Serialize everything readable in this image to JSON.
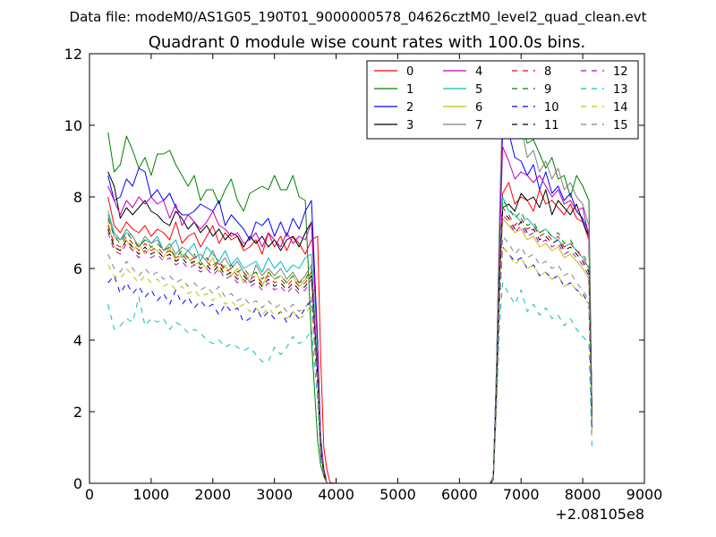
{
  "header": "Data file: modeM0/AS1G05_190T01_9000000578_04626cztM0_level2_quad_clean.evt",
  "chart_data": {
    "type": "line",
    "title": "Quadrant 0 module wise count rates with 100.0s bins.",
    "xlabel": "",
    "ylabel": "",
    "x_offset_label": "+2.08105e8",
    "xlim": [
      0,
      9000
    ],
    "ylim": [
      0,
      12
    ],
    "xticks": [
      "0",
      "1000",
      "2000",
      "3000",
      "4000",
      "5000",
      "6000",
      "7000",
      "8000",
      "9000"
    ],
    "yticks": [
      "0",
      "2",
      "4",
      "6",
      "8",
      "10",
      "12"
    ],
    "legend_position": "upper-right",
    "legend_columns": 4,
    "x": [
      300,
      400,
      500,
      600,
      700,
      800,
      900,
      1000,
      1100,
      1200,
      1300,
      1400,
      1500,
      1600,
      1700,
      1800,
      1900,
      2000,
      2100,
      2200,
      2300,
      2400,
      2500,
      2600,
      2700,
      2800,
      2900,
      3000,
      3100,
      3200,
      3300,
      3400,
      3500,
      3600,
      3700,
      3750,
      3800,
      3850,
      3900,
      4000,
      4500,
      5000,
      5500,
      6000,
      6500,
      6550,
      6600,
      6650,
      6700,
      6800,
      6900,
      7000,
      7100,
      7200,
      7300,
      7400,
      7500,
      7600,
      7700,
      7800,
      7900,
      8000,
      8100,
      8150
    ],
    "series": [
      {
        "name": "0",
        "color": "#ff0000",
        "dash": "solid",
        "values": [
          8.0,
          7.2,
          7.0,
          7.3,
          7.1,
          7.0,
          7.2,
          6.9,
          7.1,
          7.0,
          6.8,
          7.3,
          6.7,
          6.9,
          7.0,
          6.6,
          6.9,
          7.2,
          6.7,
          7.0,
          6.8,
          6.9,
          6.5,
          6.6,
          6.8,
          6.4,
          7.0,
          6.6,
          6.9,
          6.5,
          6.9,
          6.7,
          6.4,
          6.8,
          6.9,
          3.5,
          1.0,
          0.4,
          0.02,
          0.0,
          0.0,
          0.0,
          0.0,
          0.0,
          0.0,
          0.1,
          2.5,
          5.5,
          8.1,
          8.4,
          7.8,
          8.0,
          7.9,
          7.6,
          8.2,
          7.8,
          7.9,
          7.7,
          7.5,
          7.8,
          7.4,
          7.3,
          6.8,
          2.0
        ]
      },
      {
        "name": "1",
        "color": "#008000",
        "dash": "solid",
        "values": [
          9.8,
          8.7,
          8.9,
          9.7,
          9.3,
          8.8,
          9.1,
          8.6,
          9.2,
          9.2,
          9.3,
          8.9,
          8.6,
          8.3,
          8.6,
          7.9,
          8.2,
          8.2,
          7.8,
          8.2,
          8.5,
          7.9,
          7.6,
          8.1,
          8.2,
          8.3,
          8.2,
          8.6,
          8.2,
          8.2,
          8.6,
          8.0,
          7.9,
          4.0,
          1.2,
          0.5,
          0.2,
          0.0,
          0.0,
          0.0,
          0.0,
          0.0,
          0.0,
          0.0,
          0.0,
          0.2,
          3.0,
          7.0,
          10.4,
          10.3,
          10.0,
          10.1,
          9.5,
          9.6,
          9.2,
          8.8,
          9.1,
          8.5,
          8.6,
          8.0,
          8.6,
          8.3,
          7.9,
          2.0
        ]
      },
      {
        "name": "2",
        "color": "#0000ff",
        "dash": "solid",
        "values": [
          8.6,
          7.9,
          8.0,
          8.5,
          8.3,
          8.8,
          8.7,
          8.0,
          8.2,
          7.9,
          8.1,
          7.7,
          7.5,
          7.5,
          7.6,
          7.8,
          7.7,
          7.6,
          7.9,
          7.2,
          7.5,
          7.3,
          7.1,
          6.8,
          7.3,
          7.2,
          7.4,
          6.9,
          7.3,
          6.9,
          7.4,
          7.1,
          7.6,
          7.9,
          4.0,
          1.3,
          0.4,
          0.0,
          0.0,
          0.0,
          0.0,
          0.0,
          0.0,
          0.0,
          0.0,
          0.2,
          3.2,
          7.2,
          9.8,
          9.8,
          9.1,
          9.0,
          8.6,
          8.9,
          8.2,
          8.7,
          8.1,
          8.3,
          7.9,
          8.1,
          7.6,
          7.4,
          7.0,
          1.8
        ]
      },
      {
        "name": "3",
        "color": "#000000",
        "dash": "solid",
        "values": [
          8.7,
          8.3,
          7.4,
          7.7,
          7.5,
          7.7,
          7.9,
          7.6,
          7.5,
          7.3,
          7.2,
          7.6,
          7.4,
          7.1,
          7.3,
          7.0,
          7.2,
          6.9,
          7.1,
          6.8,
          7.0,
          6.9,
          6.6,
          6.9,
          6.7,
          6.9,
          6.6,
          6.8,
          6.5,
          6.8,
          6.9,
          6.6,
          7.0,
          7.3,
          3.8,
          1.1,
          0.4,
          0.0,
          0.0,
          0.0,
          0.0,
          0.0,
          0.0,
          0.0,
          0.0,
          0.1,
          2.8,
          6.0,
          7.7,
          7.8,
          7.6,
          8.1,
          7.9,
          8.0,
          7.7,
          8.2,
          7.5,
          7.9,
          7.7,
          7.5,
          7.8,
          7.3,
          6.9,
          1.9
        ]
      },
      {
        "name": "4",
        "color": "#bf00bf",
        "dash": "solid",
        "values": [
          8.3,
          7.9,
          7.5,
          7.9,
          7.7,
          8.0,
          7.8,
          8.0,
          7.8,
          7.9,
          7.4,
          7.8,
          7.2,
          7.5,
          7.3,
          7.1,
          7.3,
          7.6,
          7.2,
          7.1,
          6.9,
          7.0,
          6.7,
          6.8,
          7.0,
          6.6,
          7.0,
          6.8,
          6.6,
          7.0,
          6.7,
          6.9,
          6.8,
          7.3,
          3.8,
          1.2,
          0.4,
          0.0,
          0.0,
          0.0,
          0.0,
          0.0,
          0.0,
          0.0,
          0.0,
          0.2,
          3.0,
          6.5,
          9.4,
          9.0,
          8.5,
          8.7,
          8.6,
          8.4,
          8.6,
          8.3,
          8.0,
          8.2,
          7.8,
          7.9,
          7.6,
          7.7,
          6.9,
          1.8
        ]
      },
      {
        "name": "5",
        "color": "#00bfbf",
        "dash": "solid",
        "values": [
          7.6,
          7.0,
          6.8,
          7.0,
          6.9,
          6.6,
          6.8,
          6.7,
          6.9,
          6.5,
          6.6,
          6.8,
          6.3,
          6.5,
          6.7,
          6.2,
          6.6,
          6.4,
          6.2,
          6.5,
          6.1,
          6.3,
          6.0,
          6.1,
          6.2,
          5.9,
          6.3,
          6.0,
          6.2,
          5.9,
          6.1,
          6.0,
          6.3,
          6.4,
          3.2,
          1.0,
          0.3,
          0.0,
          0.0,
          0.0,
          0.0,
          0.0,
          0.0,
          0.0,
          0.0,
          0.1,
          2.7,
          5.8,
          8.0,
          7.6,
          7.5,
          7.3,
          7.4,
          7.2,
          7.0,
          7.1,
          6.9,
          6.8,
          6.6,
          6.7,
          6.5,
          6.3,
          6.0,
          1.7
        ]
      },
      {
        "name": "6",
        "color": "#bfbf00",
        "dash": "solid",
        "values": [
          7.3,
          6.6,
          6.5,
          6.8,
          6.5,
          6.7,
          6.4,
          6.6,
          6.5,
          6.3,
          6.6,
          6.2,
          6.4,
          6.3,
          6.1,
          6.2,
          6.0,
          6.3,
          5.9,
          6.1,
          5.8,
          6.0,
          5.6,
          5.8,
          5.9,
          5.5,
          5.9,
          5.7,
          5.8,
          5.6,
          5.8,
          5.5,
          5.7,
          5.8,
          3.0,
          0.9,
          0.3,
          0.0,
          0.0,
          0.0,
          0.0,
          0.0,
          0.0,
          0.0,
          0.0,
          0.1,
          2.5,
          5.5,
          7.4,
          7.2,
          7.0,
          7.1,
          6.8,
          6.9,
          6.6,
          6.7,
          6.5,
          6.6,
          6.3,
          6.4,
          6.2,
          6.0,
          5.7,
          1.6
        ]
      },
      {
        "name": "7",
        "color": "#808080",
        "dash": "solid",
        "values": [
          7.5,
          6.9,
          6.8,
          7.1,
          6.9,
          6.6,
          6.9,
          6.7,
          6.8,
          6.5,
          6.7,
          6.4,
          6.6,
          6.5,
          6.3,
          6.4,
          6.2,
          6.5,
          6.1,
          6.3,
          6.0,
          6.2,
          5.9,
          5.6,
          6.1,
          5.8,
          6.0,
          5.8,
          6.0,
          5.7,
          5.9,
          5.6,
          5.8,
          6.1,
          3.1,
          1.0,
          0.3,
          0.0,
          0.0,
          0.0,
          0.0,
          0.0,
          0.0,
          0.0,
          0.0,
          0.2,
          3.2,
          7.5,
          10.7,
          10.4,
          9.8,
          10.0,
          9.1,
          9.3,
          8.7,
          9.0,
          8.5,
          8.8,
          8.2,
          8.4,
          8.0,
          7.8,
          7.2,
          1.5
        ]
      },
      {
        "name": "8",
        "color": "#ff0000",
        "dash": "dashed",
        "values": [
          7.2,
          6.7,
          6.6,
          6.9,
          6.7,
          6.5,
          6.7,
          6.5,
          6.6,
          6.4,
          6.5,
          6.3,
          6.4,
          6.2,
          6.3,
          6.1,
          6.2,
          6.0,
          6.2,
          5.9,
          6.0,
          5.8,
          5.9,
          5.7,
          5.8,
          5.6,
          5.8,
          5.6,
          5.7,
          5.5,
          5.7,
          5.5,
          5.6,
          5.9,
          3.0,
          0.9,
          0.3,
          0.0,
          0.0,
          0.0,
          0.0,
          0.0,
          0.0,
          0.0,
          0.0,
          0.1,
          2.6,
          5.8,
          7.7,
          7.5,
          7.2,
          7.4,
          7.1,
          7.2,
          6.9,
          7.0,
          6.8,
          6.9,
          6.6,
          6.7,
          6.5,
          6.3,
          6.0,
          1.8
        ]
      },
      {
        "name": "9",
        "color": "#008000",
        "dash": "dashed",
        "values": [
          7.4,
          6.9,
          6.7,
          7.0,
          6.8,
          6.6,
          6.8,
          6.6,
          6.7,
          6.5,
          6.6,
          6.3,
          6.5,
          6.3,
          6.4,
          6.1,
          6.3,
          6.1,
          6.2,
          6.0,
          6.1,
          5.9,
          6.0,
          5.8,
          5.9,
          5.7,
          5.9,
          5.7,
          5.8,
          5.6,
          5.8,
          5.6,
          5.7,
          6.0,
          3.1,
          1.0,
          0.3,
          0.0,
          0.0,
          0.0,
          0.0,
          0.0,
          0.0,
          0.0,
          0.0,
          0.1,
          2.7,
          6.0,
          7.9,
          7.7,
          7.4,
          7.6,
          7.2,
          7.3,
          7.0,
          7.1,
          6.9,
          7.0,
          6.7,
          6.8,
          6.5,
          6.4,
          6.1,
          1.9
        ]
      },
      {
        "name": "10",
        "color": "#0000ff",
        "dash": "dashed",
        "values": [
          5.6,
          5.8,
          5.3,
          5.6,
          5.3,
          5.5,
          5.2,
          5.4,
          5.1,
          5.3,
          5.0,
          5.4,
          5.0,
          5.2,
          4.9,
          5.1,
          4.9,
          5.0,
          4.7,
          5.0,
          4.8,
          4.9,
          4.5,
          4.6,
          4.9,
          4.6,
          4.8,
          4.6,
          4.8,
          4.5,
          4.8,
          4.6,
          4.9,
          5.1,
          2.6,
          0.8,
          0.3,
          0.0,
          0.0,
          0.0,
          0.0,
          0.0,
          0.0,
          0.0,
          0.0,
          0.1,
          2.3,
          5.0,
          6.6,
          6.4,
          6.2,
          6.3,
          6.0,
          6.1,
          5.8,
          5.9,
          5.7,
          5.8,
          5.5,
          5.6,
          5.4,
          5.3,
          5.0,
          1.5
        ]
      },
      {
        "name": "11",
        "color": "#000000",
        "dash": "dashed",
        "values": [
          7.1,
          6.6,
          6.5,
          6.8,
          6.6,
          6.4,
          6.6,
          6.4,
          6.5,
          6.3,
          6.4,
          6.2,
          6.3,
          6.1,
          6.2,
          6.0,
          6.1,
          5.9,
          6.1,
          5.8,
          5.9,
          5.7,
          5.8,
          5.6,
          5.7,
          5.5,
          5.7,
          5.5,
          5.6,
          5.4,
          5.6,
          5.4,
          5.5,
          5.8,
          3.0,
          0.9,
          0.3,
          0.0,
          0.0,
          0.0,
          0.0,
          0.0,
          0.0,
          0.0,
          0.0,
          0.1,
          2.6,
          5.7,
          7.6,
          7.4,
          7.1,
          7.3,
          7.0,
          7.1,
          6.8,
          6.9,
          6.7,
          6.8,
          6.5,
          6.6,
          6.4,
          6.2,
          5.9,
          1.7
        ]
      },
      {
        "name": "12",
        "color": "#bf00bf",
        "dash": "dashed",
        "values": [
          7.0,
          6.5,
          6.4,
          6.7,
          6.5,
          6.3,
          6.5,
          6.3,
          6.4,
          6.2,
          6.3,
          6.1,
          6.2,
          6.0,
          6.1,
          5.9,
          6.0,
          5.8,
          6.0,
          5.7,
          5.8,
          5.6,
          5.7,
          5.5,
          5.6,
          5.4,
          5.6,
          5.4,
          5.5,
          5.3,
          5.5,
          5.3,
          5.4,
          5.7,
          2.9,
          0.9,
          0.3,
          0.0,
          0.0,
          0.0,
          0.0,
          0.0,
          0.0,
          0.0,
          0.0,
          0.1,
          2.5,
          5.6,
          7.5,
          7.3,
          7.0,
          7.2,
          6.9,
          7.0,
          6.7,
          6.8,
          6.6,
          6.7,
          6.4,
          6.5,
          6.3,
          6.1,
          5.8,
          1.7
        ]
      },
      {
        "name": "13",
        "color": "#00bfbf",
        "dash": "dashed",
        "values": [
          5.0,
          4.3,
          4.4,
          4.6,
          4.5,
          5.2,
          4.4,
          4.6,
          4.5,
          4.6,
          4.3,
          4.5,
          4.4,
          4.2,
          4.3,
          4.2,
          4.0,
          3.9,
          4.0,
          3.8,
          3.9,
          3.8,
          3.7,
          3.8,
          3.6,
          3.4,
          3.4,
          3.8,
          3.6,
          3.8,
          4.1,
          3.9,
          4.0,
          4.3,
          2.3,
          0.7,
          0.2,
          0.0,
          0.0,
          0.0,
          0.0,
          0.0,
          0.0,
          0.0,
          0.0,
          0.1,
          2.0,
          4.4,
          5.6,
          5.3,
          5.0,
          5.4,
          4.8,
          5.0,
          4.7,
          4.9,
          4.6,
          4.7,
          4.4,
          4.6,
          4.3,
          4.1,
          3.9,
          1.0
        ]
      },
      {
        "name": "14",
        "color": "#bfbf00",
        "dash": "dashed",
        "values": [
          6.1,
          5.8,
          5.7,
          6.0,
          5.8,
          5.6,
          5.8,
          5.6,
          5.7,
          5.5,
          5.6,
          5.4,
          5.5,
          5.3,
          5.4,
          5.2,
          5.3,
          5.1,
          5.3,
          5.0,
          5.1,
          4.9,
          5.0,
          4.8,
          4.9,
          4.7,
          4.9,
          4.7,
          4.8,
          4.6,
          4.8,
          4.6,
          4.7,
          5.0,
          2.6,
          0.8,
          0.2,
          0.0,
          0.0,
          0.0,
          0.0,
          0.0,
          0.0,
          0.0,
          0.0,
          0.1,
          2.2,
          4.9,
          6.6,
          6.4,
          6.1,
          6.3,
          6.0,
          6.1,
          5.8,
          5.9,
          5.7,
          5.8,
          5.5,
          5.6,
          5.4,
          5.2,
          5.0,
          1.4
        ]
      },
      {
        "name": "15",
        "color": "#808080",
        "dash": "dashed",
        "values": [
          6.4,
          6.0,
          5.9,
          6.2,
          6.0,
          5.8,
          6.0,
          5.8,
          5.9,
          5.7,
          5.8,
          5.6,
          5.7,
          5.5,
          5.6,
          5.4,
          5.5,
          5.3,
          5.5,
          5.2,
          5.3,
          5.1,
          5.2,
          5.0,
          5.1,
          4.9,
          5.1,
          4.9,
          5.0,
          4.8,
          5.0,
          4.8,
          4.9,
          5.2,
          2.7,
          0.8,
          0.2,
          0.0,
          0.0,
          0.0,
          0.0,
          0.0,
          0.0,
          0.0,
          0.0,
          0.1,
          2.3,
          5.1,
          6.9,
          6.7,
          6.4,
          6.6,
          6.3,
          6.4,
          6.1,
          6.2,
          6.0,
          6.1,
          5.8,
          5.9,
          5.6,
          5.4,
          5.1,
          1.5
        ]
      }
    ]
  }
}
